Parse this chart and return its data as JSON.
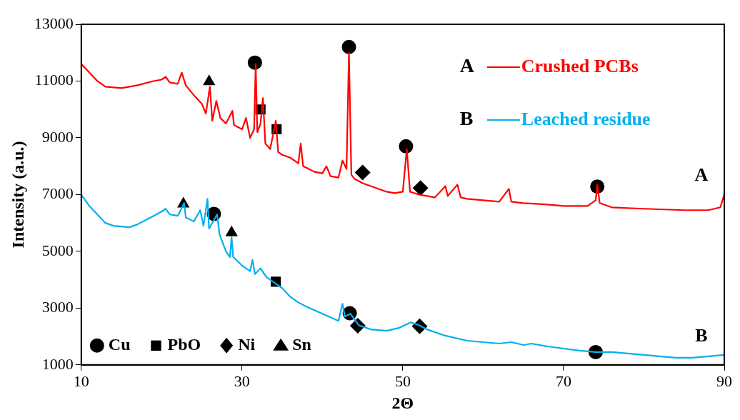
{
  "chart_data": {
    "type": "line",
    "xlabel": "2Θ",
    "ylabel": "Intensity (a.u.)",
    "xlim": [
      10,
      90
    ],
    "xticks": [
      10,
      30,
      50,
      70,
      90
    ],
    "ylim": [
      1000,
      13000
    ],
    "yticks": [
      1000,
      3000,
      5000,
      7000,
      9000,
      11000,
      13000
    ],
    "grid": false,
    "legend": "bottom left",
    "marker": "none",
    "line_style": "solid",
    "annotations": [
      "A",
      "B",
      "A",
      "B"
    ],
    "series": [
      {
        "name": "Crushed PCBs",
        "color": "#ff0000",
        "x": [
          10,
          11,
          12,
          13,
          15,
          17,
          19,
          20,
          20.5,
          21,
          22,
          22.5,
          23,
          24,
          25,
          25.5,
          26,
          26.3,
          26.8,
          27.3,
          28,
          28.8,
          29,
          30,
          30.5,
          31,
          31.5,
          31.7,
          31.9,
          32.3,
          32.6,
          32.9,
          33.5,
          34.2,
          34.5,
          35,
          36,
          37,
          37.3,
          37.6,
          38,
          39,
          40,
          40.5,
          41,
          42,
          42.5,
          43,
          43.3,
          43.6,
          44,
          45,
          46,
          47,
          48,
          49,
          50,
          50.5,
          50.9,
          52,
          54,
          55.3,
          55.6,
          56.8,
          57.2,
          58,
          60,
          62,
          63.2,
          63.5,
          65,
          68,
          70,
          73,
          74,
          74.2,
          74.5,
          76,
          80,
          85,
          88,
          89.5,
          90
        ],
        "values": [
          11600,
          11300,
          11000,
          10800,
          10750,
          10850,
          11000,
          11050,
          11150,
          10950,
          10900,
          11300,
          10850,
          10500,
          10200,
          9850,
          10800,
          9600,
          10300,
          9700,
          9500,
          9950,
          9450,
          9300,
          9700,
          9000,
          9300,
          11600,
          9200,
          9500,
          10400,
          8800,
          8600,
          9600,
          8500,
          8400,
          8300,
          8100,
          8800,
          8000,
          7950,
          7800,
          7750,
          8000,
          7650,
          7600,
          8200,
          7900,
          12000,
          7700,
          7550,
          7400,
          7300,
          7200,
          7100,
          7050,
          7100,
          8600,
          7100,
          7000,
          6900,
          7300,
          6950,
          7350,
          6900,
          6850,
          6800,
          6750,
          7200,
          6750,
          6700,
          6650,
          6600,
          6600,
          6800,
          7350,
          6700,
          6550,
          6500,
          6450,
          6450,
          6550,
          7000
        ]
      },
      {
        "name": "Leached residue",
        "color": "#00b0f0",
        "x": [
          10,
          11,
          12,
          13,
          14,
          16,
          17,
          18,
          19,
          20,
          20.5,
          21,
          22,
          22.8,
          23,
          24,
          24.8,
          25.2,
          25.7,
          25.9,
          26.5,
          26.9,
          27.2,
          28,
          28.5,
          28.7,
          28.9,
          30,
          31,
          31.3,
          31.6,
          32.3,
          33,
          34,
          35,
          36,
          37,
          38,
          40,
          42,
          42.5,
          42.8,
          43.5,
          44.5,
          46,
          48,
          49.5,
          51,
          52,
          53,
          55,
          58,
          60,
          62,
          63.5,
          65,
          66,
          68,
          72,
          74,
          76,
          80,
          84,
          86,
          88,
          90
        ],
        "values": [
          7000,
          6600,
          6300,
          6000,
          5900,
          5850,
          5950,
          6100,
          6250,
          6400,
          6500,
          6300,
          6250,
          6700,
          6200,
          6050,
          6450,
          5900,
          6850,
          5800,
          6100,
          6300,
          5600,
          5000,
          4800,
          5500,
          4800,
          4500,
          4300,
          4700,
          4200,
          4400,
          4100,
          3900,
          3700,
          3400,
          3200,
          3050,
          2800,
          2550,
          3150,
          2700,
          2800,
          2400,
          2250,
          2200,
          2300,
          2500,
          2400,
          2250,
          2050,
          1850,
          1800,
          1750,
          1800,
          1700,
          1750,
          1650,
          1500,
          1450,
          1450,
          1350,
          1250,
          1250,
          1300,
          1350
        ]
      },
      {
        "name": "Cu",
        "type": "scatter",
        "marker": "circle",
        "color": "#000000",
        "x": [
          31.6,
          43.3,
          50.4,
          74.2,
          26.5,
          43.4,
          74.0
        ],
        "values": [
          11650,
          12200,
          8700,
          7280,
          6320,
          2820,
          1450
        ]
      },
      {
        "name": "PbO",
        "type": "scatter",
        "marker": "square",
        "color": "#000000",
        "x": [
          32.3,
          34.3,
          34.2
        ],
        "values": [
          10000,
          9300,
          3930
        ]
      },
      {
        "name": "Ni",
        "type": "scatter",
        "marker": "diamond",
        "color": "#000000",
        "x": [
          45.0,
          52.2,
          44.4,
          52.1
        ],
        "values": [
          7780,
          7230,
          2380,
          2360
        ]
      },
      {
        "name": "Sn",
        "type": "scatter",
        "marker": "triangle",
        "color": "#000000",
        "x": [
          25.9,
          22.7,
          28.7
        ],
        "values": [
          10980,
          6670,
          5660
        ]
      }
    ]
  }
}
